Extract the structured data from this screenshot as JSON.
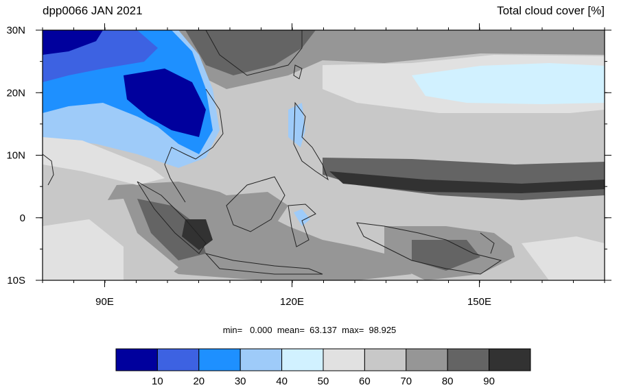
{
  "figure": {
    "title_left": "dpp0066 JAN 2021",
    "title_right": "Total cloud cover [%]",
    "stats_text": "min=   0.000  mean=  63.137  max=  98.925"
  },
  "axes": {
    "lat_labels": [
      "30N",
      "20N",
      "10N",
      "0",
      "10S"
    ],
    "lon_labels": [
      "90E",
      "120E",
      "150E"
    ]
  },
  "colorbar": {
    "colors": [
      "#00009d",
      "#3d62e2",
      "#1e90ff",
      "#9ecbf9",
      "#d1f1ff",
      "#e1e1e1",
      "#c8c8c8",
      "#969696",
      "#646464",
      "#323232"
    ],
    "labels": [
      "10",
      "20",
      "30",
      "40",
      "50",
      "60",
      "70",
      "80",
      "90"
    ]
  }
}
